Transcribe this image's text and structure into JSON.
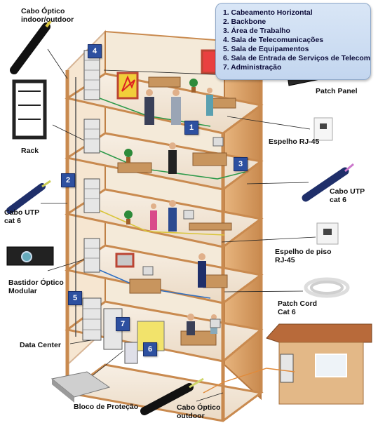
{
  "legend": {
    "items": [
      "1. Cabeamento Horizontal",
      "2. Backbone",
      "3. Área de Trabalho",
      "4. Sala de Telecomunicações",
      "5. Sala de Equipamentos",
      "6. Sala de Entrada de Serviços de Telecom",
      "7. Administração"
    ]
  },
  "labels": {
    "cabo_optico_indoor_outdoor": [
      "Cabo Óptico",
      "indoor/outdoor"
    ],
    "patch_panel": "Patch Panel",
    "rack": "Rack",
    "espelho_rj45": "Espelho RJ-45",
    "cabo_utp_left": [
      "Cabo UTP",
      "cat 6"
    ],
    "cabo_utp_right": [
      "Cabo UTP",
      "cat 6"
    ],
    "espelho_piso": [
      "Espelho de piso",
      "RJ-45"
    ],
    "bastidor": [
      "Bastidor Óptico",
      "Modular"
    ],
    "patch_cord": [
      "Patch Cord",
      "Cat 6"
    ],
    "data_center": "Data Center",
    "bloco_protecao": "Bloco de Proteção",
    "cabo_optico_outdoor": [
      "Cabo Óptico",
      "outdoor"
    ]
  },
  "badges": {
    "b1": "1",
    "b2": "2",
    "b3": "3",
    "b4": "4",
    "b5": "5",
    "b6": "6",
    "b7": "7"
  },
  "colors": {
    "wall": "#d9a06a",
    "wall_dark": "#b87a42",
    "floor": "#f2e6d6",
    "badge": "#2d50a0",
    "cable_green": "#2e9a4a",
    "cable_blue": "#2f6fc2",
    "cable_yellow": "#d9c53a"
  }
}
